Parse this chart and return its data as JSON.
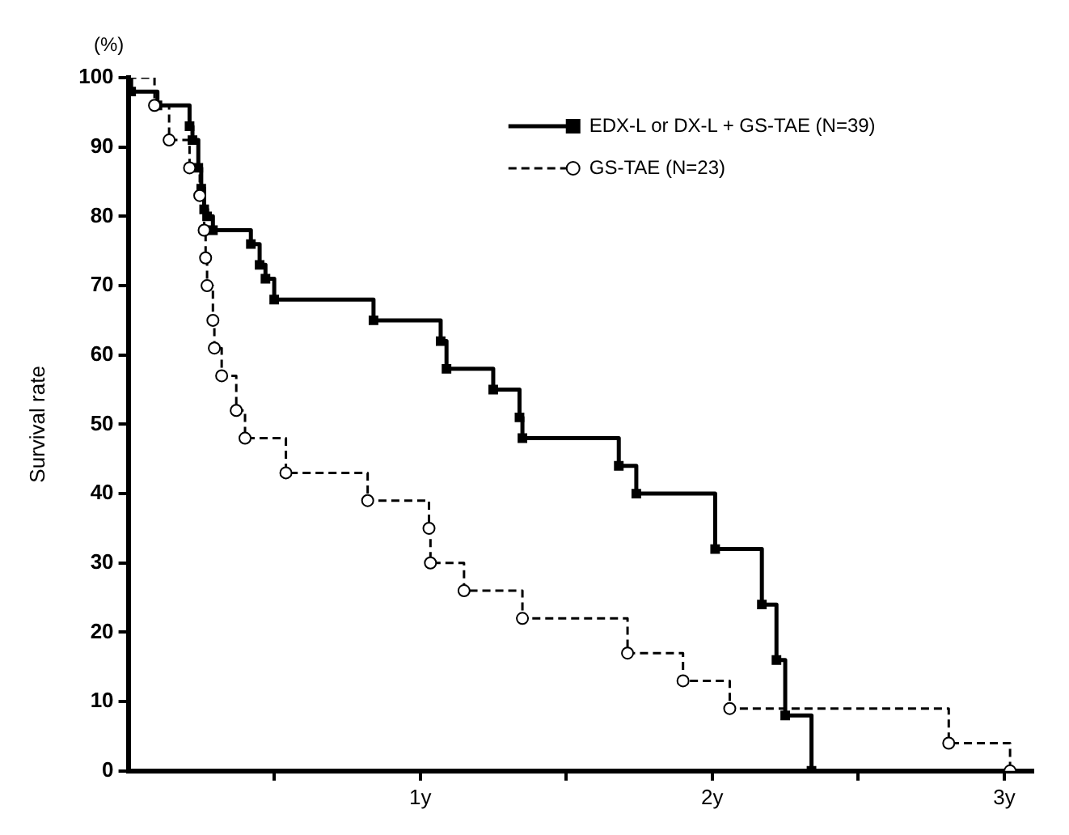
{
  "chart_data": {
    "type": "step",
    "ylabel": "Survival rate",
    "annotations": [
      "(%)"
    ],
    "xlim": [
      0,
      3.1
    ],
    "xticks": [
      {
        "value": 0.5,
        "label": null
      },
      {
        "value": 1,
        "label": "1y"
      },
      {
        "value": 1.5,
        "label": null
      },
      {
        "value": 2,
        "label": "2y"
      },
      {
        "value": 2.5,
        "label": null
      },
      {
        "value": 3,
        "label": "3y"
      }
    ],
    "ylim": [
      0,
      100
    ],
    "yticks": [
      0,
      10,
      20,
      30,
      40,
      50,
      60,
      70,
      80,
      90,
      100
    ],
    "grid": false,
    "legend": "top right",
    "series": [
      {
        "name": "EDX-L or DX-L + GS-TAE (N=39)",
        "color": "#000000",
        "marker": "square",
        "line_style": "solid",
        "x": [
          0,
          0.01,
          0.1,
          0.21,
          0.22,
          0.24,
          0.25,
          0.26,
          0.27,
          0.29,
          0.42,
          0.45,
          0.47,
          0.5,
          0.84,
          1.07,
          1.09,
          1.25,
          1.34,
          1.35,
          1.68,
          1.74,
          2.01,
          2.17,
          2.22,
          2.25,
          2.34
        ],
        "values": [
          100,
          98,
          96,
          93,
          91,
          87,
          84,
          81,
          80,
          78,
          76,
          73,
          71,
          68,
          65,
          62,
          58,
          55,
          51,
          48,
          44,
          40,
          32,
          24,
          16,
          8,
          0
        ]
      },
      {
        "name": "GS-TAE (N=23)",
        "color": "#000000",
        "marker": "circle",
        "line_style": "dashed",
        "x": [
          0,
          0.09,
          0.14,
          0.21,
          0.245,
          0.26,
          0.265,
          0.27,
          0.29,
          0.295,
          0.32,
          0.37,
          0.4,
          0.54,
          0.82,
          1.03,
          1.035,
          1.15,
          1.35,
          1.71,
          1.9,
          2.06,
          2.81,
          3.02
        ],
        "values": [
          100,
          96,
          91,
          87,
          83,
          78,
          74,
          70,
          65,
          61,
          57,
          52,
          48,
          43,
          39,
          35,
          30,
          26,
          22,
          17,
          13,
          9,
          4,
          0
        ]
      }
    ]
  }
}
